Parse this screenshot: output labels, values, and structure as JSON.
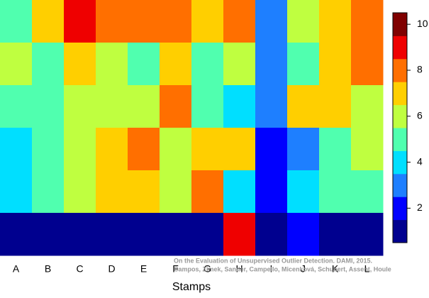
{
  "chart_data": {
    "type": "heatmap",
    "x_label": "Stamps",
    "categories": [
      "A",
      "B",
      "C",
      "D",
      "E",
      "F",
      "G",
      "H",
      "I",
      "J",
      "K",
      "L"
    ],
    "values": [
      [
        5,
        7,
        9,
        8,
        8,
        8,
        7,
        8,
        3,
        6,
        7,
        8
      ],
      [
        6,
        5,
        7,
        6,
        5,
        7,
        5,
        6,
        3,
        5,
        7,
        8
      ],
      [
        5,
        5,
        6,
        6,
        6,
        8,
        5,
        4,
        3,
        7,
        7,
        6
      ],
      [
        4,
        5,
        6,
        7,
        8,
        6,
        7,
        7,
        2,
        3,
        5,
        6
      ],
      [
        4,
        5,
        6,
        7,
        7,
        6,
        8,
        4,
        2,
        4,
        5,
        5
      ],
      [
        1,
        1,
        1,
        1,
        1,
        1,
        1,
        9,
        1,
        2,
        1,
        1
      ]
    ],
    "colors": [
      "#00008f",
      "#0000ff",
      "#1e7fff",
      "#00dfff",
      "#50ffaf",
      "#bfff40",
      "#ffcf00",
      "#ff6f00",
      "#ef0000",
      "#800000"
    ],
    "clim": [
      0.5,
      10.5
    ],
    "cticks": [
      2,
      4,
      6,
      8,
      10
    ],
    "footnote": [
      "On the Evaluation of Unsupervised Outlier Detection. DAMI, 2015.",
      "Campos, Zimek, Sander, Campello, Micenková, Schubert, Assent, Houle"
    ]
  }
}
